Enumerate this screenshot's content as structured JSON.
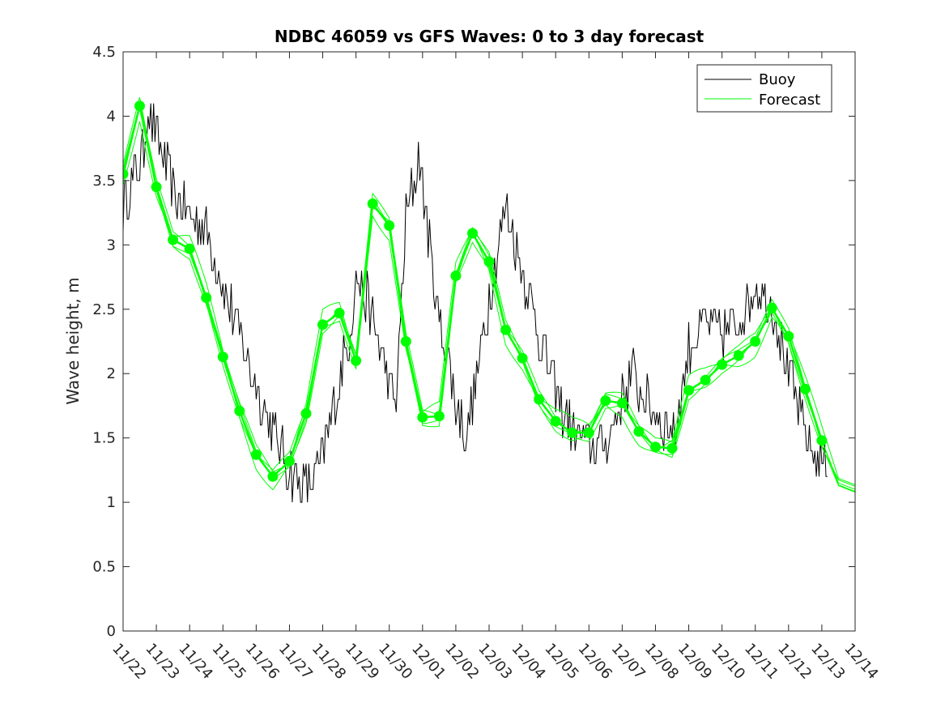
{
  "chart_data": {
    "type": "line",
    "title": "NDBC 46059 vs GFS Waves: 0 to 3 day forecast",
    "xlabel": "",
    "ylabel": "Wave height, m",
    "ylim": [
      0,
      4.5
    ],
    "xlim_days": [
      0,
      22
    ],
    "yticks": [
      "0",
      "0.5",
      "1",
      "1.5",
      "2",
      "2.5",
      "3",
      "3.5",
      "4",
      "4.5"
    ],
    "xticks": [
      "11/22",
      "11/23",
      "11/24",
      "11/25",
      "11/26",
      "11/27",
      "11/28",
      "11/29",
      "11/30",
      "12/01",
      "12/02",
      "12/03",
      "12/04",
      "12/05",
      "12/06",
      "12/07",
      "12/08",
      "12/09",
      "12/10",
      "12/11",
      "12/12",
      "12/13",
      "12/14"
    ],
    "legend": {
      "position": "top-right",
      "entries": [
        "Buoy",
        "Forecast"
      ]
    },
    "colors": {
      "buoy": "#000000",
      "forecast": "#00ff00"
    },
    "buoy_anchor_points": {
      "x_days": [
        0,
        0.3,
        0.6,
        0.75,
        0.9,
        1.2,
        1.5,
        1.8,
        2.1,
        2.5,
        3.0,
        3.5,
        4.0,
        4.5,
        4.9,
        5.3,
        5.7,
        6.0,
        6.3,
        6.8,
        7.0,
        7.3,
        7.6,
        8.0,
        8.2,
        8.5,
        8.9,
        9.2,
        9.5,
        9.8,
        10.0,
        10.3,
        10.6,
        11.0,
        11.5,
        12.0,
        12.5,
        13.0,
        13.5,
        14.0,
        14.5,
        15.0,
        15.3,
        15.8,
        16.2,
        16.6,
        17.0,
        17.5,
        18.0,
        18.5,
        19.0,
        19.6,
        20.0,
        20.4,
        20.8,
        21.0,
        21.2
      ],
      "y_m": [
        3.3,
        3.5,
        3.7,
        4.1,
        3.9,
        3.7,
        3.4,
        3.3,
        3.2,
        3.1,
        2.7,
        2.3,
        1.9,
        1.55,
        1.3,
        1.15,
        1.15,
        1.35,
        1.7,
        2.3,
        2.75,
        2.6,
        2.3,
        1.9,
        1.75,
        3.2,
        3.7,
        3.0,
        2.4,
        2.1,
        1.75,
        1.5,
        1.9,
        2.6,
        3.3,
        2.8,
        2.3,
        1.85,
        1.55,
        1.45,
        1.45,
        1.8,
        2.0,
        1.75,
        1.6,
        1.55,
        2.2,
        2.4,
        2.3,
        2.4,
        2.7,
        2.5,
        2.0,
        1.6,
        1.35,
        1.35,
        1.35
      ],
      "noise_amplitude_m": 0.2
    },
    "forecast_points": {
      "x_days": [
        0,
        0.5,
        1,
        1.5,
        2,
        2.5,
        3,
        3.5,
        4,
        4.5,
        5,
        5.5,
        6,
        6.5,
        7,
        7.5,
        8,
        8.5,
        9,
        9.5,
        10,
        10.5,
        11,
        11.5,
        12,
        12.5,
        13,
        13.5,
        14,
        14.5,
        15,
        15.5,
        16,
        16.5,
        17,
        17.5,
        18,
        18.5,
        19,
        19.5,
        20,
        20.5,
        21
      ],
      "y_m": [
        3.55,
        4.08,
        3.45,
        3.04,
        2.97,
        2.59,
        2.13,
        1.71,
        1.37,
        1.2,
        1.32,
        1.69,
        2.38,
        2.47,
        2.1,
        3.32,
        3.15,
        2.25,
        1.66,
        1.67,
        2.76,
        3.09,
        2.87,
        2.34,
        2.12,
        1.8,
        1.63,
        1.54,
        1.54,
        1.79,
        1.77,
        1.55,
        1.43,
        1.42,
        1.87,
        1.95,
        2.07,
        2.14,
        2.25,
        2.51,
        2.29,
        1.88,
        1.48
      ]
    },
    "forecast_run_offsets_m": [
      0.0,
      0.08,
      -0.07,
      0.12,
      -0.05
    ],
    "forecast_tail": {
      "x_days": [
        21.5,
        22
      ],
      "y_m": [
        1.15,
        1.1
      ]
    }
  }
}
